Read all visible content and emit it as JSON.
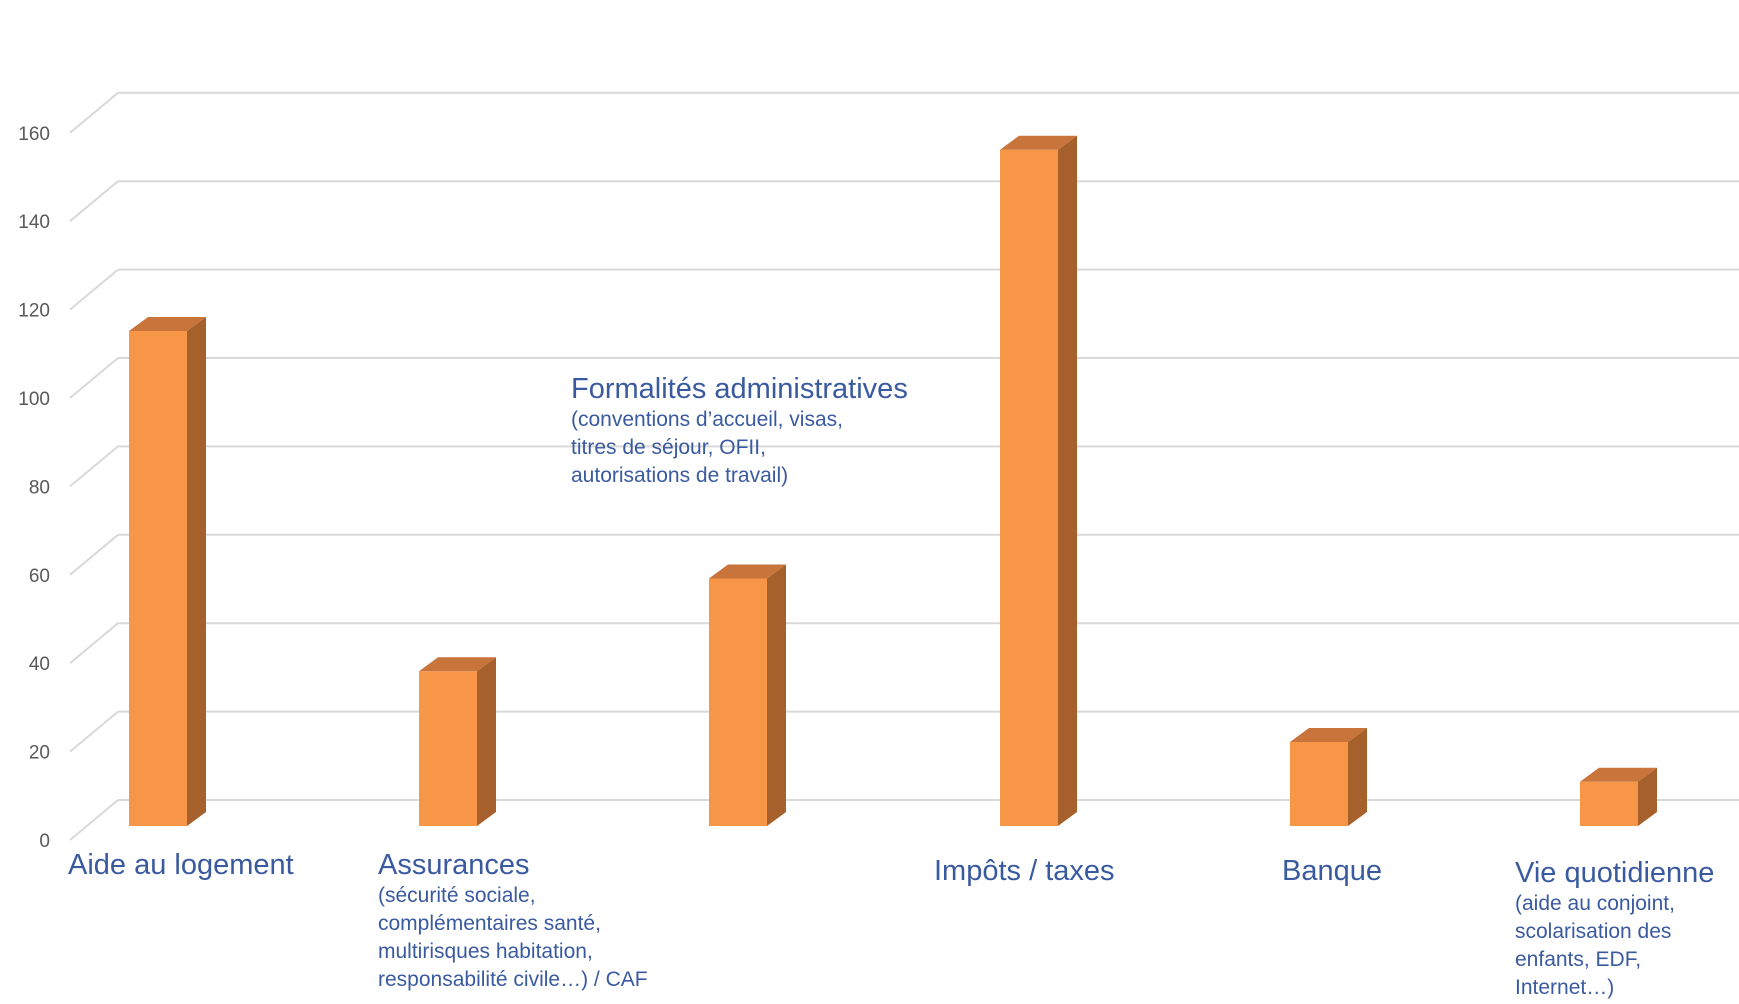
{
  "chart_data": {
    "type": "bar",
    "categories": [
      {
        "label": "Aide au logement",
        "detail": ""
      },
      {
        "label": "Assurances",
        "detail": [
          "(sécurité sociale,",
          "complémentaires santé,",
          "multirisques habitation,",
          "responsabilité civile…) / CAF"
        ]
      },
      {
        "label": "Formalités administratives",
        "detail": [
          "(conventions d’accueil, visas,",
          "titres de séjour, OFII,",
          "autorisations de travail)"
        ]
      },
      {
        "label": "Impôts / taxes",
        "detail": ""
      },
      {
        "label": "Banque",
        "detail": ""
      },
      {
        "label": "Vie quotidienne",
        "detail": [
          "(aide au conjoint,",
          "scolarisation des",
          "enfants, EDF,",
          "Internet…)"
        ]
      }
    ],
    "values": [
      112,
      35,
      56,
      153,
      19,
      10
    ],
    "yticks": [
      "0",
      "20",
      "40",
      "60",
      "80",
      "100",
      "120",
      "140",
      "160"
    ],
    "ylim": [
      0,
      160
    ],
    "grid": true,
    "colors": {
      "bar_front": "#f79646",
      "bar_side": "#a5602b",
      "bar_top": "#c8743a",
      "grid": "#d9d9d9",
      "label": "#3a5aa0"
    }
  }
}
